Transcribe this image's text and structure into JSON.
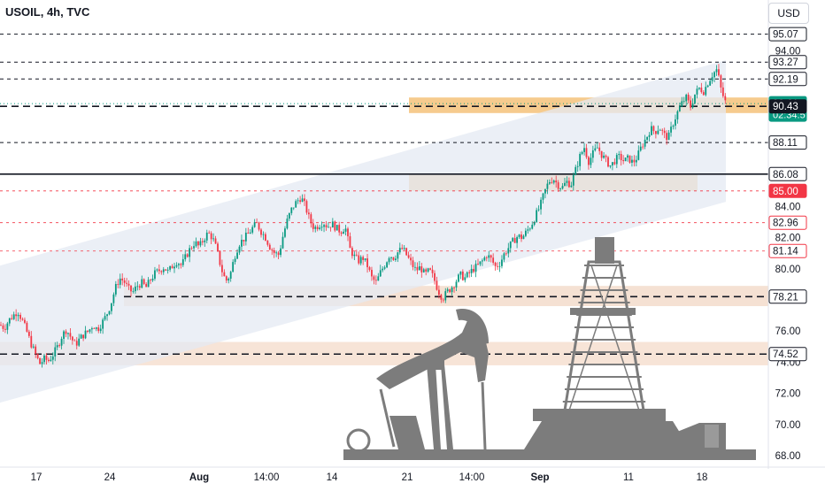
{
  "header": {
    "symbol_title": "USOIL, 4h, TVC",
    "currency": "USD"
  },
  "chart_data": {
    "type": "candlestick",
    "y_axis": {
      "ticks": [
        68,
        70,
        72,
        74,
        76,
        78,
        80,
        82,
        84,
        86,
        88,
        90,
        92,
        94
      ],
      "range": [
        67.2,
        96.5
      ]
    },
    "x_axis": {
      "ticks": [
        {
          "label": "17",
          "bold": false
        },
        {
          "label": "24",
          "bold": false
        },
        {
          "label": "Aug",
          "bold": true
        },
        {
          "label": "14:00",
          "bold": false
        },
        {
          "label": "14",
          "bold": false
        },
        {
          "label": "21",
          "bold": false
        },
        {
          "label": "14:00",
          "bold": false
        },
        {
          "label": "Sep",
          "bold": true
        },
        {
          "label": "11",
          "bold": false
        },
        {
          "label": "18",
          "bold": false
        }
      ]
    },
    "price_labels": [
      {
        "value": 95.07,
        "text": "95.07",
        "style": "outline",
        "line": "dashed-dark"
      },
      {
        "value": 93.27,
        "text": "93.27",
        "style": "outline",
        "line": "dashed-dark"
      },
      {
        "value": 92.19,
        "text": "92.19",
        "style": "outline",
        "line": "dashed-dark"
      },
      {
        "value": 90.61,
        "text": "90.61",
        "sub": "02:34:57",
        "style": "current",
        "line": "dotted-teal"
      },
      {
        "value": 90.43,
        "text": "90.43",
        "style": "dark",
        "line": "dashed-dark-bold"
      },
      {
        "value": 88.11,
        "text": "88.11",
        "style": "outline",
        "line": "dashed-dark"
      },
      {
        "value": 86.08,
        "text": "86.08",
        "style": "outline",
        "line": "solid-dark"
      },
      {
        "value": 85.0,
        "text": "85.00",
        "style": "red",
        "line": "dashed-red"
      },
      {
        "value": 82.96,
        "text": "82.96",
        "style": "outline-red",
        "line": "dashed-red"
      },
      {
        "value": 81.14,
        "text": "81.14",
        "style": "outline-red",
        "line": "dashed-red"
      },
      {
        "value": 78.21,
        "text": "78.21",
        "style": "outline",
        "line": "dashed-dark-bold"
      },
      {
        "value": 74.52,
        "text": "74.52",
        "style": "outline",
        "line": "dashed-dark-bold"
      }
    ],
    "zones": [
      {
        "name": "resistance-zone",
        "from": 90.0,
        "to": 91.0,
        "color": "#f5c27a"
      },
      {
        "name": "breakout-zone",
        "from": 85.0,
        "to": 86.1,
        "color": "#f2c78f"
      },
      {
        "name": "support-zone",
        "from": 77.6,
        "to": 78.9,
        "color": "#f3dccb"
      },
      {
        "name": "lower-support-zone",
        "from": 73.8,
        "to": 75.3,
        "color": "#f6dfd0"
      }
    ],
    "channel": {
      "upper": [
        [
          0,
          80.2
        ],
        [
          820,
          93.4
        ]
      ],
      "lower": [
        [
          0,
          71.4
        ],
        [
          820,
          84.3
        ]
      ],
      "color": "#e4e9f3"
    },
    "colors": {
      "up": "#089981",
      "down": "#f23645",
      "current": "#089981",
      "label_red": "#f23645"
    },
    "path": [
      [
        0,
        76.4
      ],
      [
        5,
        76.2
      ],
      [
        10,
        76.7
      ],
      [
        15,
        77.0
      ],
      [
        20,
        77.3
      ],
      [
        25,
        76.7
      ],
      [
        30,
        76.0
      ],
      [
        35,
        75.2
      ],
      [
        40,
        74.5
      ],
      [
        45,
        73.9
      ],
      [
        50,
        74.2
      ],
      [
        55,
        74.1
      ],
      [
        60,
        74.5
      ],
      [
        65,
        75.0
      ],
      [
        70,
        75.7
      ],
      [
        75,
        76.1
      ],
      [
        80,
        75.6
      ],
      [
        85,
        75.1
      ],
      [
        90,
        75.5
      ],
      [
        95,
        75.8
      ],
      [
        100,
        76.0
      ],
      [
        105,
        76.4
      ],
      [
        110,
        76.1
      ],
      [
        115,
        76.5
      ],
      [
        120,
        77.0
      ],
      [
        125,
        77.7
      ],
      [
        130,
        78.7
      ],
      [
        135,
        79.4
      ],
      [
        140,
        79.2
      ],
      [
        145,
        78.7
      ],
      [
        150,
        78.5
      ],
      [
        155,
        78.9
      ],
      [
        160,
        79.1
      ],
      [
        165,
        78.8
      ],
      [
        170,
        79.3
      ],
      [
        175,
        79.7
      ],
      [
        180,
        79.9
      ],
      [
        185,
        80.1
      ],
      [
        190,
        79.8
      ],
      [
        195,
        80.2
      ],
      [
        200,
        80.5
      ],
      [
        205,
        80.2
      ],
      [
        210,
        80.8
      ],
      [
        215,
        81.3
      ],
      [
        220,
        81.7
      ],
      [
        225,
        81.4
      ],
      [
        230,
        81.9
      ],
      [
        235,
        82.3
      ],
      [
        240,
        82.0
      ],
      [
        245,
        81.2
      ],
      [
        250,
        80.0
      ],
      [
        255,
        79.2
      ],
      [
        260,
        79.6
      ],
      [
        265,
        80.8
      ],
      [
        270,
        81.6
      ],
      [
        275,
        81.9
      ],
      [
        280,
        82.2
      ],
      [
        285,
        82.6
      ],
      [
        290,
        82.9
      ],
      [
        295,
        82.4
      ],
      [
        300,
        82.0
      ],
      [
        305,
        81.4
      ],
      [
        310,
        81.0
      ],
      [
        315,
        80.9
      ],
      [
        320,
        82.2
      ],
      [
        325,
        83.2
      ],
      [
        330,
        83.9
      ],
      [
        335,
        84.3
      ],
      [
        340,
        84.6
      ],
      [
        345,
        84.0
      ],
      [
        350,
        83.1
      ],
      [
        355,
        82.6
      ],
      [
        360,
        82.8
      ],
      [
        365,
        83.0
      ],
      [
        370,
        82.7
      ],
      [
        375,
        82.9
      ],
      [
        380,
        82.6
      ],
      [
        385,
        82.4
      ],
      [
        390,
        82.7
      ],
      [
        395,
        81.3
      ],
      [
        400,
        80.8
      ],
      [
        405,
        80.5
      ],
      [
        410,
        80.7
      ],
      [
        415,
        80.2
      ],
      [
        420,
        79.4
      ],
      [
        425,
        79.1
      ],
      [
        430,
        79.8
      ],
      [
        435,
        80.3
      ],
      [
        440,
        80.9
      ],
      [
        445,
        80.7
      ],
      [
        450,
        81.1
      ],
      [
        455,
        81.3
      ],
      [
        460,
        80.8
      ],
      [
        465,
        80.3
      ],
      [
        470,
        79.9
      ],
      [
        475,
        80.1
      ],
      [
        480,
        79.6
      ],
      [
        485,
        79.9
      ],
      [
        490,
        79.4
      ],
      [
        495,
        78.6
      ],
      [
        500,
        78.1
      ],
      [
        505,
        78.5
      ],
      [
        510,
        78.8
      ],
      [
        515,
        79.2
      ],
      [
        520,
        79.6
      ],
      [
        525,
        79.4
      ],
      [
        530,
        79.7
      ],
      [
        535,
        80.0
      ],
      [
        540,
        80.2
      ],
      [
        545,
        80.5
      ],
      [
        550,
        80.9
      ],
      [
        555,
        80.6
      ],
      [
        560,
        80.1
      ],
      [
        565,
        80.4
      ],
      [
        570,
        81.0
      ],
      [
        575,
        81.4
      ],
      [
        580,
        81.8
      ],
      [
        585,
        82.1
      ],
      [
        590,
        82.0
      ],
      [
        595,
        82.4
      ],
      [
        600,
        82.8
      ],
      [
        605,
        83.4
      ],
      [
        610,
        84.0
      ],
      [
        615,
        84.9
      ],
      [
        620,
        85.6
      ],
      [
        625,
        85.8
      ],
      [
        630,
        85.4
      ],
      [
        635,
        85.2
      ],
      [
        640,
        85.6
      ],
      [
        645,
        85.4
      ],
      [
        650,
        86.3
      ],
      [
        655,
        87.2
      ],
      [
        660,
        87.8
      ],
      [
        665,
        86.9
      ],
      [
        670,
        87.4
      ],
      [
        675,
        87.8
      ],
      [
        680,
        87.3
      ],
      [
        685,
        86.9
      ],
      [
        690,
        86.6
      ],
      [
        695,
        87.0
      ],
      [
        700,
        87.2
      ],
      [
        705,
        86.9
      ],
      [
        710,
        87.1
      ],
      [
        715,
        86.8
      ],
      [
        720,
        87.2
      ],
      [
        725,
        87.9
      ],
      [
        730,
        88.4
      ],
      [
        735,
        89.0
      ],
      [
        740,
        88.8
      ],
      [
        745,
        89.1
      ],
      [
        750,
        88.6
      ],
      [
        755,
        88.4
      ],
      [
        760,
        89.3
      ],
      [
        765,
        90.0
      ],
      [
        770,
        90.6
      ],
      [
        775,
        91.0
      ],
      [
        780,
        90.4
      ],
      [
        785,
        91.2
      ],
      [
        790,
        91.6
      ],
      [
        795,
        91.4
      ],
      [
        800,
        92.0
      ],
      [
        805,
        92.5
      ],
      [
        810,
        92.8
      ],
      [
        815,
        91.4
      ],
      [
        820,
        90.61
      ]
    ]
  }
}
